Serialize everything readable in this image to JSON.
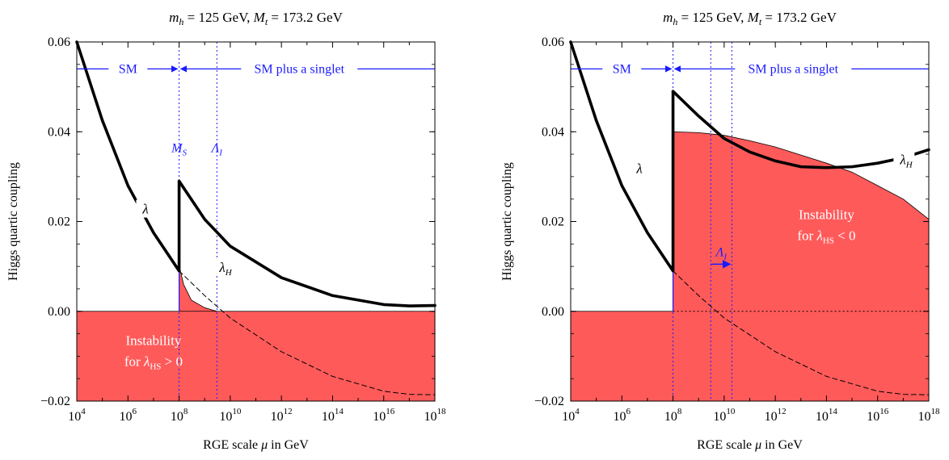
{
  "colors": {
    "region": "#ff5a5a",
    "annotation": "#1a1aff",
    "curve": "#000000"
  },
  "chart_data": [
    {
      "type": "line",
      "title": "m_h = 125 GeV, M_t = 173.2 GeV",
      "title_parts": {
        "mh_sym": "m",
        "mh_sub": "h",
        "mh_val": " = 125 GeV, ",
        "mt_sym": "M",
        "mt_sub": "t",
        "mt_val": " = 173.2 GeV"
      },
      "xlabel": "RGE scale μ in GeV",
      "xlabel_parts": {
        "pre": "RGE scale ",
        "mu": "μ",
        "post": " in GeV"
      },
      "ylabel": "Higgs quartic coupling",
      "x_scale": "log",
      "xlim": [
        10000,
        1e+18
      ],
      "ylim": [
        -0.02,
        0.06
      ],
      "x_ticks": [
        {
          "value": 10000,
          "base": "10",
          "exp": "4"
        },
        {
          "value": 1000000,
          "base": "10",
          "exp": "6"
        },
        {
          "value": 100000000,
          "base": "10",
          "exp": "8"
        },
        {
          "value": 10000000000,
          "base": "10",
          "exp": "10"
        },
        {
          "value": 1000000000000,
          "base": "10",
          "exp": "12"
        },
        {
          "value": 100000000000000,
          "base": "10",
          "exp": "14"
        },
        {
          "value": 1e+16,
          "base": "10",
          "exp": "16"
        },
        {
          "value": 1e+18,
          "base": "10",
          "exp": "18"
        }
      ],
      "y_ticks": [
        "0.06",
        "0.04",
        "0.02",
        "0.00",
        "−0.02"
      ],
      "y_tick_values": [
        0.06,
        0.04,
        0.02,
        0.0,
        -0.02
      ],
      "series": [
        {
          "name": "λ",
          "style": "solid-thick",
          "x": [
            10000,
            100000,
            1000000,
            10000000,
            100000000
          ],
          "y": [
            0.06,
            0.0425,
            0.028,
            0.0175,
            0.009
          ]
        },
        {
          "name": "λ_H",
          "style": "solid-thick",
          "x": [
            100000000,
            1000000000,
            10000000000,
            1000000000000,
            100000000000000,
            1e+16,
            1e+17,
            1e+18
          ],
          "y": [
            0.029,
            0.0205,
            0.0145,
            0.0075,
            0.0035,
            0.0015,
            0.0012,
            0.0013
          ]
        },
        {
          "style": "dashed",
          "x": [
            100000000,
            1000000000,
            10000000000,
            1000000000000,
            100000000000000,
            1e+16,
            1e+17,
            1e+18
          ],
          "y": [
            0.009,
            0.0035,
            -0.0015,
            -0.009,
            -0.0145,
            -0.0178,
            -0.0185,
            -0.0186
          ]
        }
      ],
      "regions": [
        {
          "label_line1": "Instability",
          "label_line2_pre": "for ",
          "label_line2_sym": "λ",
          "label_line2_sub": "HS",
          "label_line2_post": " > 0"
        }
      ],
      "upper_boundary": {
        "x": [
          100000000,
          150000000,
          300000000,
          1000000000,
          3000000000
        ],
        "y": [
          0.0102,
          0.006,
          0.0025,
          0.0008,
          0.0
        ]
      },
      "vlines": [
        {
          "x": 100000000,
          "label_sym": "M",
          "label_sub": "S"
        },
        {
          "x": 3000000000,
          "label_sym": "Λ",
          "label_sub": "I"
        }
      ],
      "annotations": {
        "sm": "SM",
        "singlet": "SM plus a singlet",
        "arrow_y": 0.054
      },
      "curve_labels": [
        {
          "sym": "λ",
          "sub": "",
          "x": 5000000,
          "y": 0.0225
        },
        {
          "sym": "λ",
          "sub": "H",
          "x": 5000000000,
          "y": 0.0095
        }
      ]
    },
    {
      "type": "line",
      "title": "m_h = 125 GeV, M_t = 173.2 GeV",
      "title_parts": {
        "mh_sym": "m",
        "mh_sub": "h",
        "mh_val": " = 125 GeV, ",
        "mt_sym": "M",
        "mt_sub": "t",
        "mt_val": " = 173.2 GeV"
      },
      "xlabel": "RGE scale μ in GeV",
      "xlabel_parts": {
        "pre": "RGE scale ",
        "mu": "μ",
        "post": " in GeV"
      },
      "ylabel": "Higgs quartic coupling",
      "x_scale": "log",
      "xlim": [
        10000,
        1e+18
      ],
      "ylim": [
        -0.02,
        0.06
      ],
      "x_ticks": [
        {
          "value": 10000,
          "base": "10",
          "exp": "4"
        },
        {
          "value": 1000000,
          "base": "10",
          "exp": "6"
        },
        {
          "value": 100000000,
          "base": "10",
          "exp": "8"
        },
        {
          "value": 10000000000,
          "base": "10",
          "exp": "10"
        },
        {
          "value": 1000000000000,
          "base": "10",
          "exp": "12"
        },
        {
          "value": 100000000000000,
          "base": "10",
          "exp": "14"
        },
        {
          "value": 1e+16,
          "base": "10",
          "exp": "16"
        },
        {
          "value": 1e+18,
          "base": "10",
          "exp": "18"
        }
      ],
      "y_ticks": [
        "0.06",
        "0.04",
        "0.02",
        "0.00",
        "−0.02"
      ],
      "y_tick_values": [
        0.06,
        0.04,
        0.02,
        0.0,
        -0.02
      ],
      "series": [
        {
          "name": "λ",
          "style": "solid-thick",
          "x": [
            10000,
            100000,
            1000000,
            10000000,
            100000000
          ],
          "y": [
            0.06,
            0.0425,
            0.028,
            0.0175,
            0.009
          ]
        },
        {
          "name": "λ_H",
          "style": "solid-thick",
          "x": [
            100000000,
            1000000000,
            10000000000,
            100000000000,
            1000000000000,
            10000000000000,
            100000000000000,
            1000000000000000,
            1e+16,
            1e+17,
            1e+18
          ],
          "y": [
            0.049,
            0.0435,
            0.0385,
            0.0355,
            0.0335,
            0.0322,
            0.032,
            0.0322,
            0.033,
            0.0342,
            0.036
          ]
        },
        {
          "style": "dashed",
          "x": [
            100000000,
            1000000000,
            10000000000,
            1000000000000,
            100000000000000,
            1e+16,
            1e+17,
            1e+18
          ],
          "y": [
            0.009,
            0.0035,
            -0.0015,
            -0.009,
            -0.0145,
            -0.0178,
            -0.0185,
            -0.0186
          ]
        }
      ],
      "regions": [
        {
          "label_line1": "Instability",
          "label_line2_pre": "for ",
          "label_line2_sym": "λ",
          "label_line2_sub": "HS",
          "label_line2_post": " < 0"
        }
      ],
      "upper_boundary": {
        "x": [
          100000000,
          1000000000,
          10000000000,
          100000000000,
          1000000000000,
          10000000000000,
          100000000000000,
          1000000000000000,
          1e+16,
          1e+17,
          1e+18
        ],
        "y": [
          0.04,
          0.0398,
          0.0392,
          0.038,
          0.0366,
          0.0348,
          0.033,
          0.031,
          0.028,
          0.025,
          0.0205
        ]
      },
      "vlines": [
        {
          "x": 100000000
        },
        {
          "x": 3000000000
        },
        {
          "x": 20000000000
        }
      ],
      "region_arrow": {
        "sym": "Λ",
        "sub": "I",
        "x_from": 3000000000,
        "x_to": 20000000000,
        "y": 0.0105
      },
      "annotations": {
        "sm": "SM",
        "singlet": "SM plus a singlet",
        "arrow_y": 0.054
      },
      "curve_labels": [
        {
          "sym": "λ",
          "sub": "",
          "x": 5000000,
          "y": 0.0315
        },
        {
          "sym": "λ",
          "sub": "H",
          "x": 1e+17,
          "y": 0.0335
        }
      ]
    }
  ]
}
